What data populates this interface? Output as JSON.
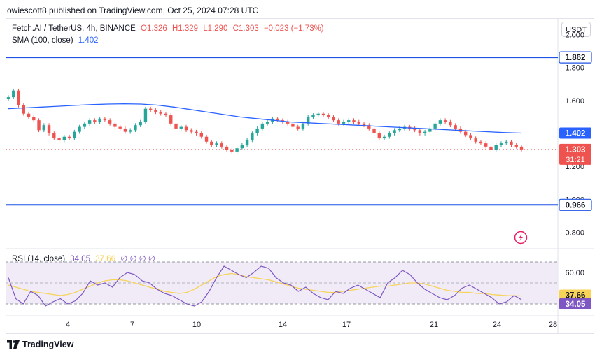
{
  "publisher": "owiescott8 published on TradingView.com, Oct 25, 2024 07:28 UTC",
  "currency_button": "USDT",
  "footer_brand": "TradingView",
  "legend": {
    "symbol": "Fetch.AI / TetherUS, 4h, BINANCE",
    "open": "O1.326",
    "high": "H1.329",
    "low": "L1.290",
    "close": "C1.303",
    "change": "−0.023 (−1.73%)",
    "sma_label": "SMA (100, close)",
    "sma_value": "1.402",
    "rsi_label": "RSI (14, close)",
    "rsi_value": "34.05",
    "rsi_ma_value": "37.66",
    "rsi_extra": "∅ ∅ ∅ ∅"
  },
  "colors": {
    "up": "#26a69a",
    "down": "#ef5350",
    "sma": "#2962ff",
    "horizontal_line": "#1e53e5",
    "rsi": "#7e57c2",
    "rsi_ma": "#f7d358",
    "rsi_band": "#ede7f6"
  },
  "icons": {
    "lightning": "lightning-icon",
    "tv_logo": "tradingview-logo-icon"
  },
  "chart_data": [
    {
      "type": "candlestick",
      "title": "Fetch.AI / TetherUS, 4h, BINANCE",
      "y_ticks": [
        "2.000",
        "1.800",
        "1.600",
        "1.400",
        "1.200",
        "1.000",
        "0.800"
      ],
      "ylim": [
        0.7,
        2.1
      ],
      "x_ticks": [
        "4",
        "7",
        "10",
        "14",
        "17",
        "21",
        "24",
        "28"
      ],
      "horizontal_lines": [
        1.862,
        0.966
      ],
      "price_labels": {
        "line_high": "1.862",
        "sma": "1.402",
        "last": "1.303",
        "countdown": "31:21",
        "line_low": "0.966"
      },
      "candle_closes": [
        1.62,
        1.66,
        1.57,
        1.52,
        1.5,
        1.48,
        1.42,
        1.45,
        1.4,
        1.37,
        1.36,
        1.38,
        1.37,
        1.41,
        1.44,
        1.46,
        1.48,
        1.47,
        1.49,
        1.48,
        1.46,
        1.44,
        1.43,
        1.41,
        1.42,
        1.45,
        1.47,
        1.55,
        1.54,
        1.53,
        1.52,
        1.51,
        1.46,
        1.43,
        1.44,
        1.42,
        1.41,
        1.4,
        1.38,
        1.35,
        1.33,
        1.34,
        1.32,
        1.3,
        1.29,
        1.31,
        1.33,
        1.36,
        1.4,
        1.43,
        1.46,
        1.47,
        1.49,
        1.48,
        1.47,
        1.46,
        1.44,
        1.43,
        1.46,
        1.5,
        1.51,
        1.52,
        1.51,
        1.5,
        1.48,
        1.46,
        1.47,
        1.48,
        1.47,
        1.46,
        1.45,
        1.43,
        1.4,
        1.37,
        1.38,
        1.4,
        1.42,
        1.43,
        1.44,
        1.43,
        1.42,
        1.4,
        1.41,
        1.43,
        1.46,
        1.48,
        1.47,
        1.45,
        1.43,
        1.41,
        1.39,
        1.37,
        1.35,
        1.34,
        1.32,
        1.3,
        1.33,
        1.34,
        1.35,
        1.33,
        1.32,
        1.303
      ],
      "sma_series": [
        1.55,
        1.555,
        1.56,
        1.565,
        1.57,
        1.575,
        1.578,
        1.58,
        1.578,
        1.572,
        1.56,
        1.545,
        1.53,
        1.515,
        1.5,
        1.49,
        1.48,
        1.47,
        1.465,
        1.46,
        1.455,
        1.45,
        1.445,
        1.44,
        1.435,
        1.43,
        1.425,
        1.42,
        1.415,
        1.41,
        1.405,
        1.402
      ],
      "rsi_panel": {
        "y_ticks": [
          "60.00",
          "37.66",
          "34.05"
        ],
        "ylim": [
          20,
          80
        ],
        "overbought": 70,
        "middle": 50,
        "oversold": 30,
        "rsi_values": [
          55,
          35,
          30,
          42,
          38,
          28,
          32,
          35,
          30,
          33,
          40,
          52,
          48,
          50,
          46,
          55,
          60,
          58,
          52,
          50,
          44,
          40,
          38,
          34,
          30,
          28,
          32,
          42,
          55,
          66,
          62,
          58,
          55,
          60,
          66,
          64,
          55,
          50,
          48,
          42,
          46,
          40,
          36,
          34,
          42,
          40,
          45,
          48,
          44,
          40,
          36,
          50,
          55,
          62,
          58,
          50,
          44,
          40,
          36,
          34,
          38,
          45,
          48,
          44,
          40,
          36,
          30,
          32,
          38,
          34.05
        ],
        "rsi_ma_values": [
          48,
          46,
          44,
          42,
          41,
          40,
          39,
          38,
          39,
          41,
          44,
          47,
          50,
          52,
          53,
          53,
          52,
          50,
          48,
          46,
          44,
          42,
          41,
          40,
          41,
          44,
          48,
          52,
          56,
          58,
          59,
          58,
          56,
          55,
          54,
          53,
          51,
          49,
          47,
          45,
          44,
          43,
          42,
          41,
          41,
          42,
          43,
          44,
          45,
          46,
          47,
          47,
          48,
          49,
          50,
          50,
          49,
          47,
          45,
          43,
          42,
          41,
          41,
          40,
          40,
          39,
          38.5,
          38,
          37.8,
          37.66
        ]
      }
    }
  ]
}
